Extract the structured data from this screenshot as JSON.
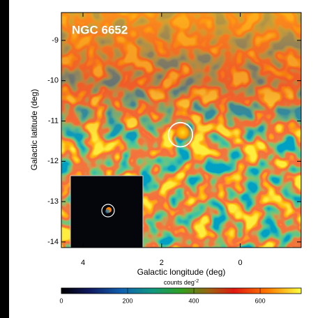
{
  "chart_data": {
    "type": "heatmap",
    "title": "NGC 6652",
    "x_label": "Galactic longitude (deg)",
    "y_label": "Galactic latitude (deg)",
    "xlim": [
      4.55,
      -1.55
    ],
    "ylim": [
      -14.14,
      -8.31
    ],
    "xticks": [
      4,
      2,
      0
    ],
    "yticks": [
      -9,
      -10,
      -11,
      -12,
      -13,
      -14
    ],
    "source": {
      "x": 1.52,
      "y": -11.34,
      "radius": 0.3
    },
    "colorbar": {
      "label": "counts deg",
      "label_exponent": "-2",
      "lim": [
        0,
        724
      ],
      "ticks": [
        0,
        200,
        400,
        600
      ]
    }
  }
}
